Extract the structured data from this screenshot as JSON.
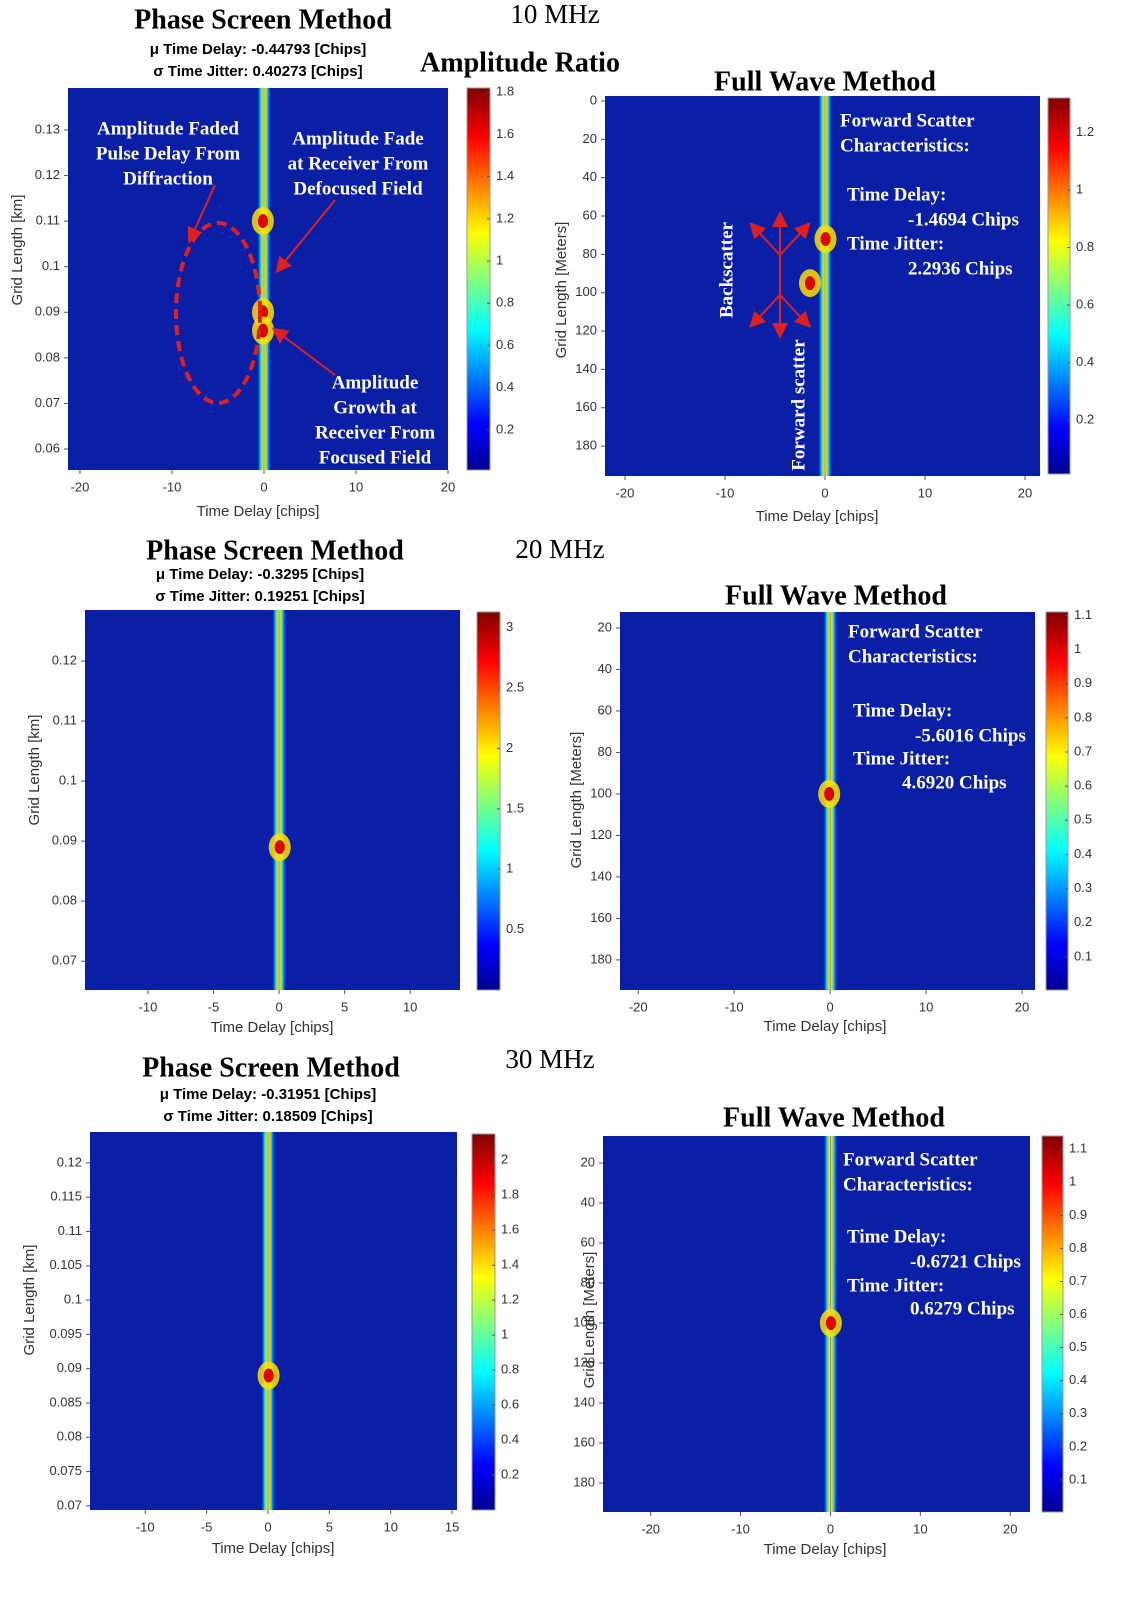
{
  "frequency_labels": [
    "10 MHz",
    "20 MHz",
    "30 MHz"
  ],
  "chart_data": [
    {
      "type": "heatmap",
      "title": "Phase Screen Method",
      "subtitle": [
        "μ Time Delay: -0.44793 [Chips]",
        "σ Time Jitter: 0.40273 [Chips]"
      ],
      "xlabel": "Time Delay [chips]",
      "ylabel": "Grid Length  [km]",
      "colorbar_label": "Amplitude Ratio",
      "xlim": [
        -21.3,
        20
      ],
      "xticks": [
        -20,
        -10,
        0,
        10,
        20
      ],
      "ylim": [
        0.0554,
        0.1392
      ],
      "yticks": [
        0.06,
        0.07,
        0.08,
        0.09,
        0.1,
        0.11,
        0.12,
        0.13
      ],
      "clim": [
        0.01,
        1.82
      ],
      "cticks": [
        0.2,
        0.4,
        0.6,
        0.8,
        1,
        1.2,
        1.4,
        1.6,
        1.8
      ],
      "annotations": [
        {
          "lines": [
            "Amplitude Faded",
            "Pulse Delay From",
            "Diffraction"
          ]
        },
        {
          "lines": [
            "Amplitude Fade",
            "at Receiver From",
            "Defocused Field"
          ]
        },
        {
          "lines": [
            "Amplitude",
            "Growth at",
            "Receiver From",
            "Focused Field"
          ]
        }
      ]
    },
    {
      "type": "heatmap",
      "title": "Full Wave Method",
      "xlabel": "Time Delay [chips]",
      "ylabel": "Grid Length [Meters]",
      "xlim": [
        -22,
        21.5
      ],
      "xticks": [
        -20,
        -10,
        0,
        10,
        20
      ],
      "ylim": [
        -2.6,
        195.6
      ],
      "y_inverted": true,
      "yticks": [
        0,
        20,
        40,
        60,
        80,
        100,
        120,
        140,
        160,
        180
      ],
      "clim": [
        0.013,
        1.32
      ],
      "cticks": [
        0.2,
        0.4,
        0.6,
        0.8,
        1,
        1.2
      ],
      "annotations": [
        {
          "lines": [
            "Forward Scatter",
            "Characteristics:"
          ]
        },
        {
          "lines": [
            "Time Delay:"
          ]
        },
        {
          "lines": [
            "-1.4694 Chips"
          ]
        },
        {
          "lines": [
            "Time Jitter:"
          ]
        },
        {
          "lines": [
            "2.2936 Chips"
          ]
        },
        {
          "lines": [
            "Backscatter"
          ]
        },
        {
          "lines": [
            "Forward scatter"
          ]
        }
      ]
    },
    {
      "type": "heatmap",
      "title": "Phase Screen Method",
      "subtitle": [
        "μ Time Delay: -0.3295 [Chips]",
        "σ Time Jitter: 0.19251 [Chips]"
      ],
      "xlabel": "Time Delay [chips]",
      "ylabel": "Grid Length [km]",
      "xlim": [
        -14.8,
        13.8
      ],
      "xticks": [
        -10,
        -5,
        0,
        5,
        10
      ],
      "ylim": [
        0.0652,
        0.1285
      ],
      "yticks": [
        0.07,
        0.08,
        0.09,
        0.1,
        0.11,
        0.12
      ],
      "clim": [
        0,
        3.13
      ],
      "cticks": [
        0.5,
        1,
        1.5,
        2,
        2.5,
        3
      ]
    },
    {
      "type": "heatmap",
      "title": "Full Wave Method",
      "xlabel": "Time Delay [chips]",
      "ylabel": "Grid Length [Meters]",
      "xlim": [
        -21.9,
        21.35
      ],
      "xticks": [
        -20,
        -10,
        0,
        10,
        20
      ],
      "ylim": [
        12.3,
        194.5
      ],
      "y_inverted": true,
      "yticks": [
        20,
        40,
        60,
        80,
        100,
        120,
        140,
        160,
        180
      ],
      "clim": [
        0.003,
        1.11
      ],
      "cticks": [
        0.1,
        0.2,
        0.3,
        0.4,
        0.5,
        0.6,
        0.7,
        0.8,
        0.9,
        1,
        1.1
      ],
      "annotations": [
        {
          "lines": [
            "Forward Scatter",
            "Characteristics:"
          ]
        },
        {
          "lines": [
            "Time Delay:"
          ]
        },
        {
          "lines": [
            "-5.6016 Chips"
          ]
        },
        {
          "lines": [
            "Time Jitter:"
          ]
        },
        {
          "lines": [
            "4.6920 Chips"
          ]
        }
      ]
    },
    {
      "type": "heatmap",
      "title": "Phase Screen Method",
      "subtitle": [
        "μ Time Delay: -0.31951 [Chips]",
        "σ Time Jitter: 0.18509 [Chips]"
      ],
      "xlabel": "Time Delay [chips]",
      "ylabel": "Grid Length  [km]",
      "xlim": [
        -14.5,
        15.4
      ],
      "xticks": [
        -10,
        -5,
        0,
        5,
        10,
        15
      ],
      "ylim": [
        0.0694,
        0.1245
      ],
      "yticks": [
        0.07,
        0.075,
        0.08,
        0.085,
        0.09,
        0.095,
        0.1,
        0.105,
        0.11,
        0.115,
        0.12
      ],
      "clim": [
        0,
        2.15
      ],
      "cticks": [
        0.2,
        0.4,
        0.6,
        0.8,
        1,
        1.2,
        1.4,
        1.6,
        1.8,
        2
      ]
    },
    {
      "type": "heatmap",
      "title": "Full Wave Method",
      "xlabel": "Time Delay [chips]",
      "ylabel": "Grid Length [Meters]",
      "xlim": [
        -25.3,
        22.2
      ],
      "xticks": [
        -20,
        -10,
        0,
        10,
        20
      ],
      "ylim": [
        6.5,
        194.5
      ],
      "y_inverted": true,
      "yticks": [
        20,
        40,
        60,
        80,
        100,
        120,
        140,
        160,
        180
      ],
      "clim": [
        0.003,
        1.14
      ],
      "cticks": [
        0.1,
        0.2,
        0.3,
        0.4,
        0.5,
        0.6,
        0.7,
        0.8,
        0.9,
        1,
        1.1
      ],
      "annotations": [
        {
          "lines": [
            "Forward Scatter",
            "Characteristics:"
          ]
        },
        {
          "lines": [
            "Time Delay:"
          ]
        },
        {
          "lines": [
            "-0.6721 Chips"
          ]
        },
        {
          "lines": [
            "Time Jitter:"
          ]
        },
        {
          "lines": [
            "0.6279 Chips"
          ]
        }
      ]
    }
  ]
}
